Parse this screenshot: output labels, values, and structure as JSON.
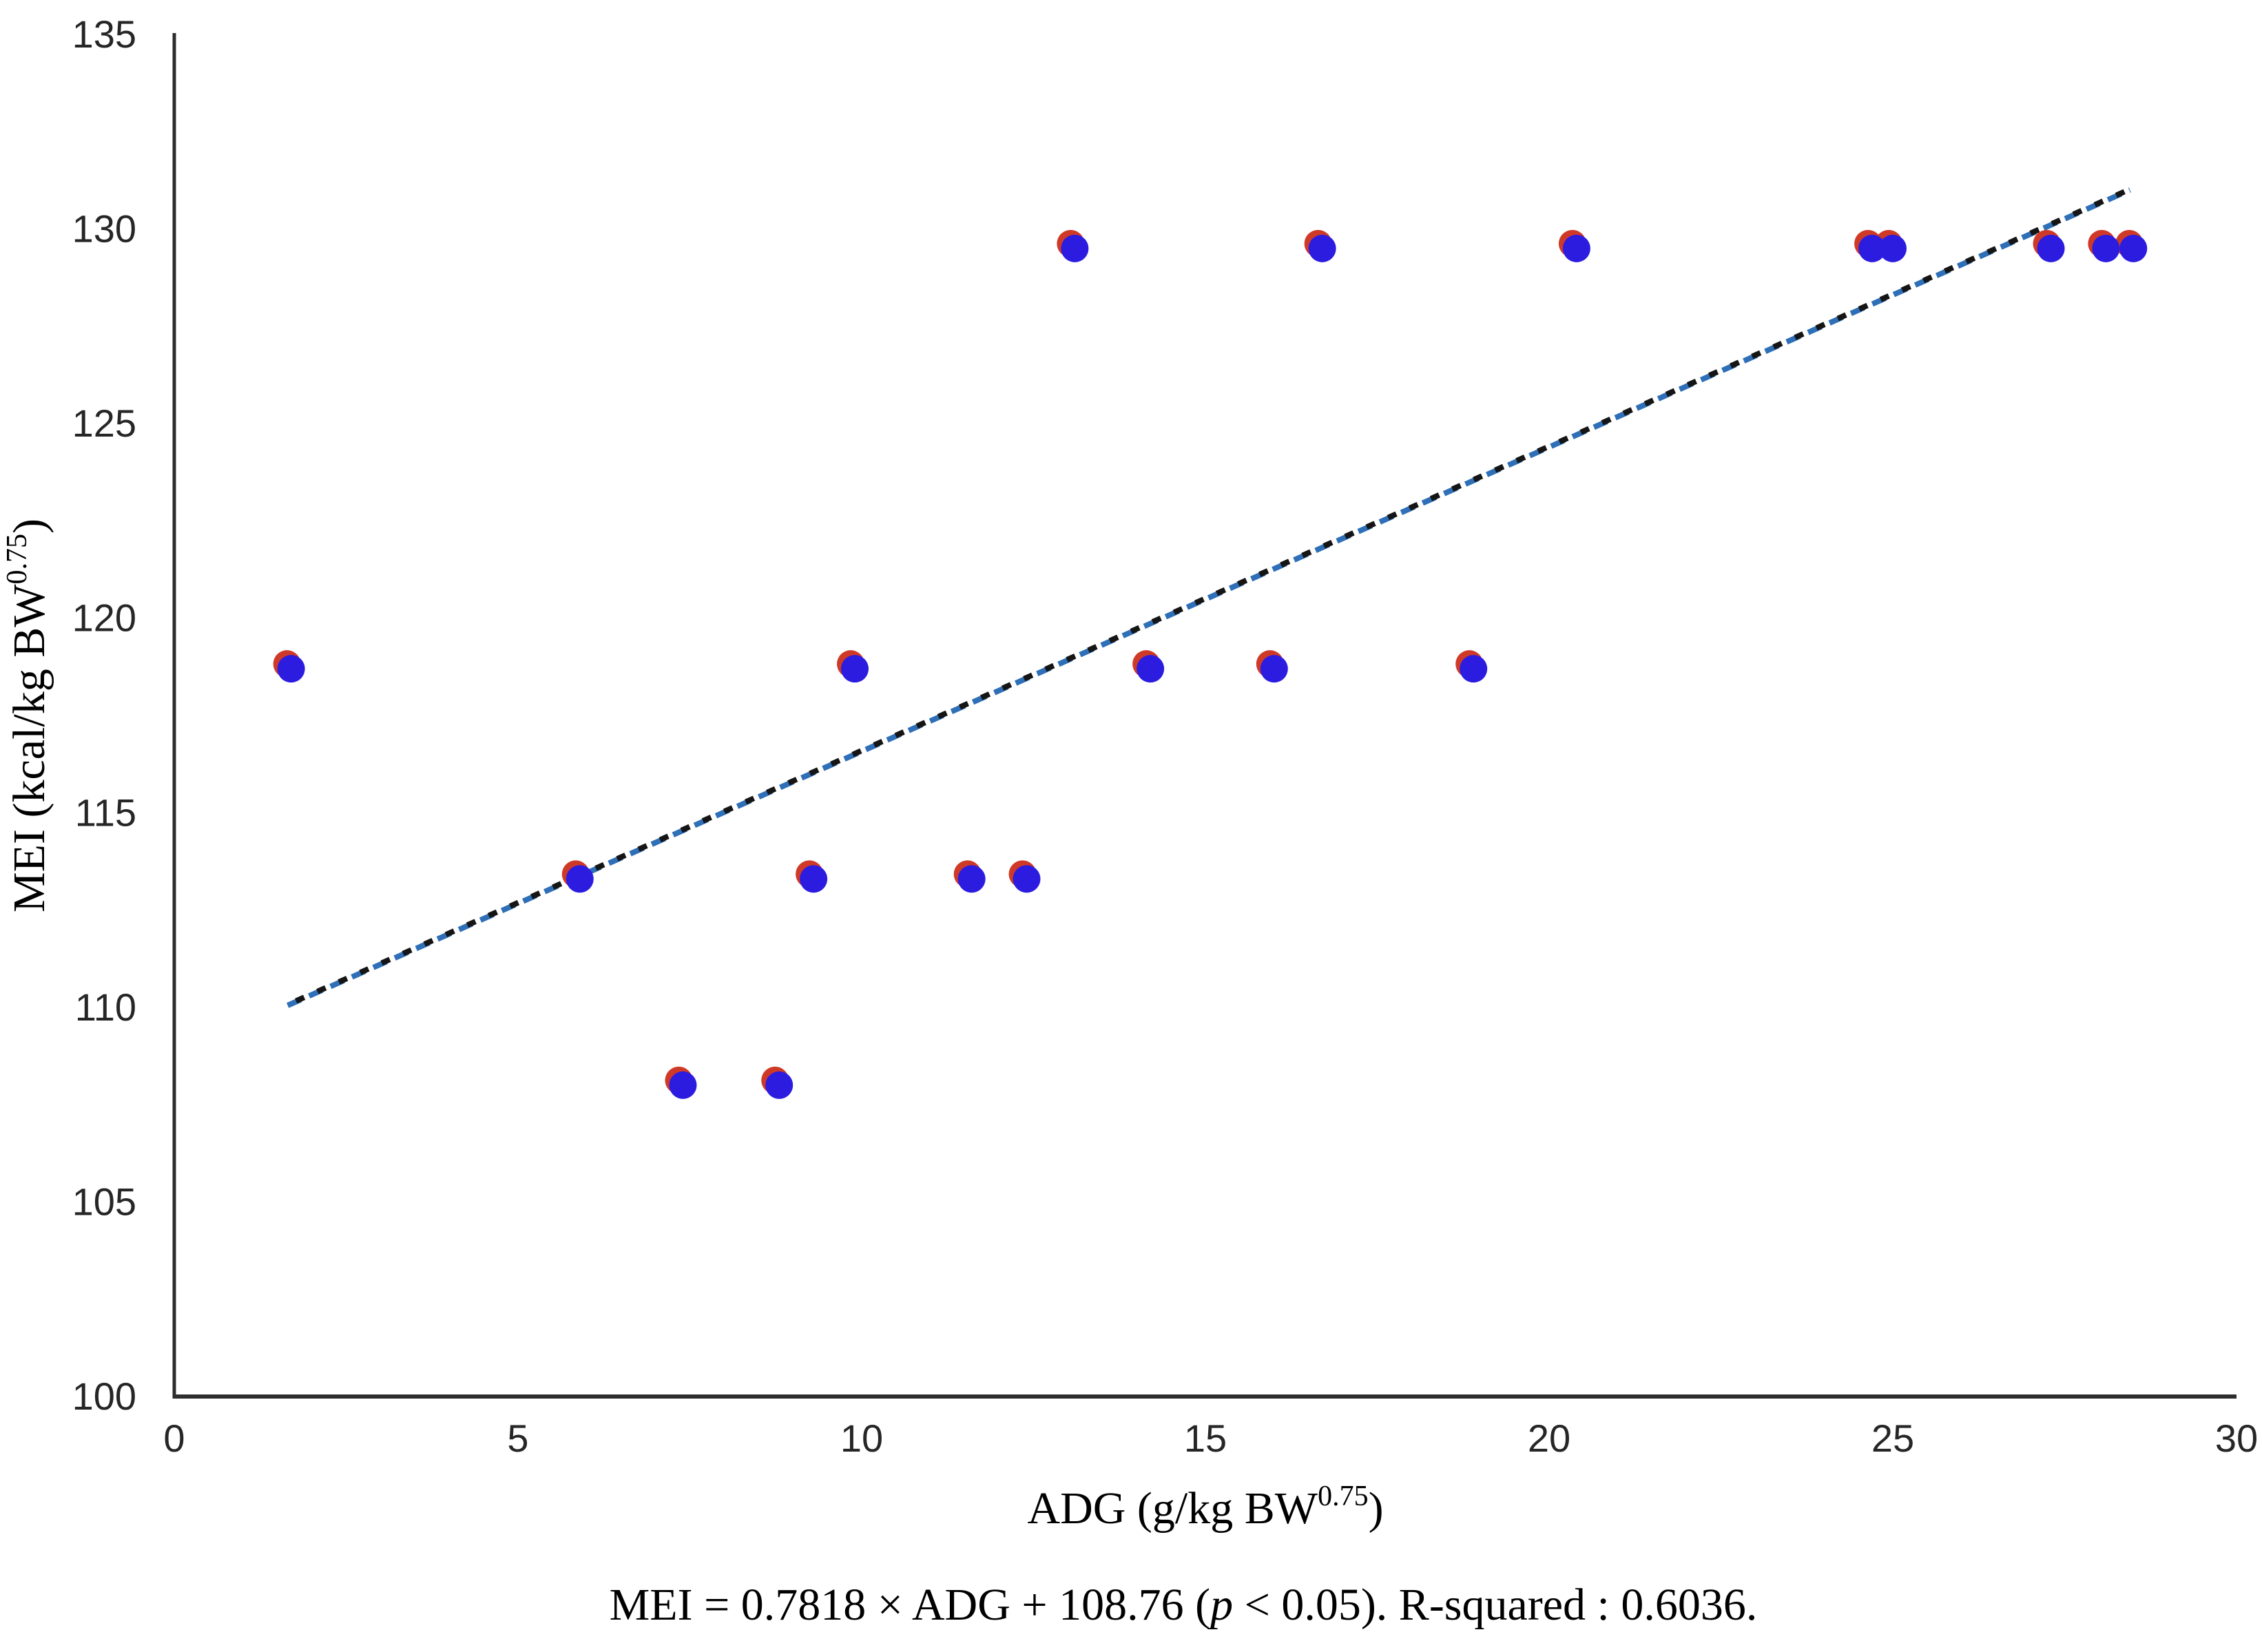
{
  "chart_data": {
    "type": "scatter",
    "title": "",
    "xlabel_parts": [
      "ADG (g/kg BW",
      "0.75",
      ")"
    ],
    "ylabel_parts": [
      "MEI (kcal/kg BW",
      "0.75",
      ")"
    ],
    "xlabel_plain": "ADG (g/kg BW^0.75)",
    "ylabel_plain": "MEI (kcal/kg BW^0.75)",
    "xlim": [
      0,
      30
    ],
    "ylim": [
      100,
      135
    ],
    "x_ticks": [
      "0",
      "5",
      "10",
      "15",
      "20",
      "25",
      "30"
    ],
    "y_ticks": [
      "100",
      "105",
      "110",
      "115",
      "120",
      "125",
      "130",
      "135"
    ],
    "grid": false,
    "legend": "none",
    "points": [
      [
        1.7,
        118.7
      ],
      [
        5.9,
        113.3
      ],
      [
        7.4,
        108.0
      ],
      [
        8.8,
        108.0
      ],
      [
        9.3,
        113.3
      ],
      [
        9.9,
        118.7
      ],
      [
        11.6,
        113.3
      ],
      [
        12.4,
        113.3
      ],
      [
        13.1,
        129.5
      ],
      [
        14.2,
        118.7
      ],
      [
        16.0,
        118.7
      ],
      [
        16.7,
        129.5
      ],
      [
        18.9,
        118.7
      ],
      [
        20.4,
        129.5
      ],
      [
        24.7,
        129.5
      ],
      [
        25.0,
        129.5
      ],
      [
        27.3,
        129.5
      ],
      [
        28.1,
        129.5
      ],
      [
        28.5,
        129.5
      ]
    ],
    "marker": {
      "front_color": "#2b1ce0",
      "back_color": "#cf3a28",
      "back_offset_x": -6,
      "back_offset_y": -7,
      "radius": 20
    },
    "trendline": {
      "slope": 0.7818,
      "intercept": 108.76,
      "x_start": 1.65,
      "x_end": 28.45,
      "style": "dashed",
      "dash_blue": "#2e6fb7",
      "dash_black": "#151515"
    },
    "caption_parts": {
      "pre": "MEI = 0.7818 × ADG + 108.76 (",
      "italic": "p",
      "post": " < 0.05). R-squared : 0.6036."
    },
    "equation_text": "MEI = 0.7818 × ADG + 108.76 (p < 0.05). R-squared : 0.6036."
  }
}
